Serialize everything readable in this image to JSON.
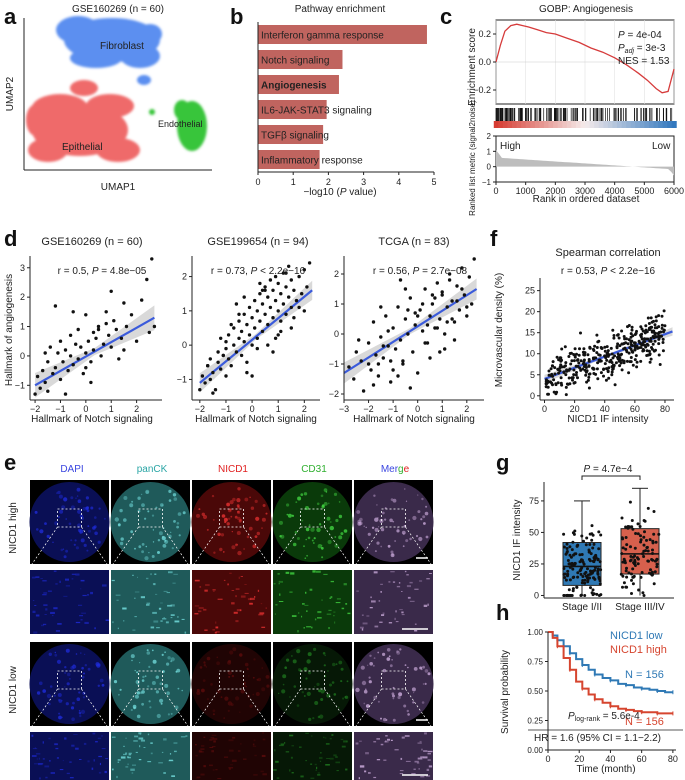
{
  "panel_labels": {
    "a": "a",
    "b": "b",
    "c": "c",
    "d": "d",
    "e": "e",
    "f": "f",
    "g": "g",
    "h": "h"
  },
  "colors": {
    "fibroblast": "#5b8ff0",
    "epithelial": "#ef6b6b",
    "endothelial": "#39c53b",
    "bar": "#c0645f",
    "gsea": "#d63b3b",
    "regline": "#3b5bdb",
    "box1": "#2f79b5",
    "box2": "#d6604d",
    "km_low": "#2f79b5",
    "km_high": "#d6452f"
  },
  "chart_data": [
    {
      "type": "scatter",
      "panel": "a",
      "title": "GSE160269 (n = 60)",
      "xlabel": "UMAP1",
      "ylabel": "UMAP2",
      "clusters": [
        {
          "name": "Fibroblast"
        },
        {
          "name": "Epithelial"
        },
        {
          "name": "Endothelial"
        }
      ]
    },
    {
      "type": "bar",
      "panel": "b",
      "title": "Pathway enrichment",
      "xlabel_pre": "−log10 (",
      "xlabel_it": "P",
      "xlabel_post": " value)",
      "xlim": [
        0,
        5
      ],
      "xticks": [
        "0",
        "1",
        "2",
        "3",
        "4",
        "5"
      ],
      "categories": [
        "Interferon gamma response",
        "Notch signaling",
        "Angiogenesis",
        "IL6-JAK-STAT3 signaling",
        "TGFβ signaling",
        "Inflammatory response"
      ],
      "values": [
        4.8,
        2.4,
        2.3,
        1.95,
        1.85,
        1.75
      ],
      "bold_category": "Angiogenesis"
    },
    {
      "type": "line",
      "panel": "c",
      "title": "GOBP: Angiogenesis",
      "ylabel": "Enrichment score",
      "yticks": [
        "0.2",
        "0.0",
        "−0.2"
      ],
      "ylim": [
        -0.3,
        0.3
      ],
      "stats": {
        "p_label": "P",
        "p_value": " = 4e-04",
        "padj_label": "P",
        "padj_sub": "adj",
        "padj_value": " = 3e-3",
        "nes": "NES = 1.53"
      },
      "x": [
        0,
        150,
        300,
        500,
        700,
        900,
        1100,
        1400,
        1700,
        2000,
        2400,
        2800,
        3200,
        3600,
        4000,
        4400,
        4800,
        5100,
        5400,
        5600,
        5800,
        6000
      ],
      "es": [
        0.0,
        0.12,
        0.22,
        0.26,
        0.27,
        0.26,
        0.25,
        0.23,
        0.21,
        0.2,
        0.17,
        0.14,
        0.1,
        0.07,
        0.03,
        -0.02,
        -0.08,
        -0.13,
        -0.19,
        -0.22,
        -0.21,
        -0.05
      ],
      "metric": {
        "ylabel": "Ranked list metric (signal2noise)",
        "yticks": [
          "2",
          "1",
          "0",
          "−1"
        ],
        "ylim": [
          -1,
          2
        ],
        "high": "High",
        "low": "Low",
        "xlabel": "Rank in ordered dataset",
        "xticks": [
          "0",
          "1000",
          "2000",
          "3000",
          "4000",
          "5000",
          "6000"
        ]
      }
    },
    {
      "type": "scatter",
      "panel": "d1",
      "title": "GSE160269 (n = 60)",
      "stat_pre": "r = 0.5, ",
      "stat_p": "P",
      "stat_post": " = 4.8e−05",
      "xlabel": "Hallmark of Notch signaling",
      "ylabel": "Hallmark of angiogenesis",
      "xlim": [
        -2.2,
        3
      ],
      "ylim": [
        -1.5,
        3.4
      ],
      "xticks": [
        "−2",
        "−1",
        "0",
        "1",
        "2"
      ],
      "yticks": [
        "−1",
        "0",
        "1",
        "2",
        "3"
      ],
      "fit": {
        "x": [
          -2,
          2.7
        ],
        "y": [
          -1.0,
          1.3
        ]
      },
      "points": {
        "x": [
          -2,
          -1.9,
          -1.8,
          -1.7,
          -1.6,
          -1.5,
          -1.5,
          -1.4,
          -1.3,
          -1.2,
          -1.1,
          -1.0,
          -1.0,
          -0.9,
          -0.8,
          -0.7,
          -0.6,
          -0.6,
          -0.5,
          -0.4,
          -0.3,
          -0.3,
          -0.2,
          -0.1,
          0.0,
          0.0,
          0.1,
          0.2,
          0.3,
          0.3,
          0.4,
          0.5,
          0.6,
          0.7,
          0.8,
          0.9,
          1.0,
          1.1,
          1.2,
          1.3,
          1.4,
          1.5,
          1.6,
          1.8,
          2.0,
          2.2,
          2.4,
          2.6,
          2.7,
          -1.2,
          -0.5,
          0.2,
          0.8,
          1.5,
          -0.8,
          0.5,
          1.0,
          -1.6,
          0.0,
          2.5
        ],
        "y": [
          -1.3,
          -0.7,
          -1.1,
          -0.5,
          -0.9,
          -0.2,
          -1.2,
          0.3,
          -0.6,
          -0.4,
          0.1,
          -0.8,
          0.5,
          -0.2,
          0.2,
          -0.5,
          0.0,
          0.7,
          -0.3,
          0.4,
          -0.1,
          0.9,
          0.3,
          -0.6,
          0.1,
          1.4,
          0.5,
          -0.2,
          0.8,
          0.2,
          0.6,
          1.0,
          0.0,
          0.4,
          1.5,
          0.7,
          0.3,
          1.2,
          0.9,
          -0.1,
          0.6,
          1.8,
          1.0,
          1.4,
          0.5,
          1.9,
          2.6,
          3.3,
          1.0,
          1.7,
          1.5,
          -0.9,
          1.1,
          0.2,
          -1.3,
          0.9,
          2.2,
          0.1,
          -0.4,
          0.8
        ]
      }
    },
    {
      "type": "scatter",
      "panel": "d2",
      "title": "GSE199654 (n = 94)",
      "stat_pre": "r = 0.73, ",
      "stat_p": "P",
      "stat_post": " < 2.2e−16",
      "xlabel": "Hallmark of Notch signaling",
      "xlim": [
        -2.3,
        2.6
      ],
      "ylim": [
        -1.6,
        2.6
      ],
      "xticks": [
        "−2",
        "−1",
        "0",
        "1",
        "2"
      ],
      "yticks": [
        "−1",
        "0",
        "1",
        "2"
      ],
      "fit": {
        "x": [
          -2,
          2.3
        ],
        "y": [
          -1.1,
          1.6
        ]
      },
      "points": {
        "x": [
          -2,
          -1.9,
          -1.8,
          -1.7,
          -1.6,
          -1.6,
          -1.5,
          -1.4,
          -1.3,
          -1.3,
          -1.2,
          -1.1,
          -1.0,
          -1.0,
          -0.9,
          -0.9,
          -0.8,
          -0.7,
          -0.7,
          -0.6,
          -0.5,
          -0.5,
          -0.4,
          -0.4,
          -0.3,
          -0.3,
          -0.2,
          -0.2,
          -0.1,
          -0.1,
          0.0,
          0.0,
          0.1,
          0.1,
          0.2,
          0.2,
          0.3,
          0.3,
          0.4,
          0.4,
          0.5,
          0.5,
          0.6,
          0.6,
          0.7,
          0.7,
          0.8,
          0.8,
          0.9,
          0.9,
          1.0,
          1.0,
          1.1,
          1.1,
          1.2,
          1.2,
          1.3,
          1.3,
          1.4,
          1.4,
          1.5,
          1.5,
          1.6,
          1.7,
          1.8,
          1.9,
          2.0,
          2.1,
          2.2,
          -1.5,
          -1.0,
          -0.5,
          0.0,
          0.5,
          1.0,
          1.5,
          -1.2,
          -0.2,
          0.3,
          0.8,
          1.3,
          -0.8,
          0.6,
          1.6,
          -1.7,
          -0.6,
          0.4,
          1.1,
          2.0,
          -0.3,
          0.9,
          1.8,
          -1.1,
          0.2
        ],
        "y": [
          -1.3,
          -0.9,
          -1.1,
          -0.6,
          -1.0,
          -0.4,
          -0.8,
          -1.3,
          -0.5,
          -0.2,
          -0.7,
          -0.3,
          -0.9,
          0.1,
          -0.4,
          0.3,
          -0.6,
          0.0,
          0.5,
          -0.2,
          0.2,
          0.7,
          -0.3,
          0.4,
          0.1,
          0.9,
          -0.5,
          0.6,
          0.3,
          1.1,
          0.0,
          0.8,
          0.5,
          1.3,
          0.2,
          1.0,
          0.7,
          1.5,
          0.4,
          1.2,
          0.9,
          1.7,
          0.6,
          1.4,
          1.1,
          1.9,
          0.8,
          1.6,
          1.3,
          2.0,
          1.0,
          1.8,
          0.7,
          1.5,
          1.2,
          2.1,
          0.9,
          1.7,
          1.4,
          2.3,
          1.1,
          1.9,
          1.6,
          1.3,
          2.0,
          1.5,
          2.2,
          1.7,
          2.4,
          -1.4,
          -0.1,
          0.9,
          -0.9,
          1.6,
          0.3,
          0.5,
          0.2,
          -0.8,
          1.8,
          -0.2,
          2.1,
          0.6,
          0.0,
          0.8,
          -0.6,
          1.2,
          1.6,
          0.4,
          1.0,
          1.4,
          0.2,
          1.1,
          -0.3,
          -0.1
        ]
      }
    },
    {
      "type": "scatter",
      "panel": "d3",
      "title": "TCGA (n = 83)",
      "stat_pre": "r = 0.56, ",
      "stat_p": "P",
      "stat_post": " = 2.7e−08",
      "xlabel": "Hallmark of Notch signaling",
      "xlim": [
        -3,
        2.7
      ],
      "ylim": [
        -2.2,
        2.6
      ],
      "xticks": [
        "−3",
        "−2",
        "−1",
        "0",
        "1",
        "2"
      ],
      "yticks": [
        "−2",
        "−1",
        "0",
        "1",
        "2"
      ],
      "fit": {
        "x": [
          -3,
          2.4
        ],
        "y": [
          -1.3,
          1.5
        ]
      },
      "points": {
        "x": [
          -2.8,
          -2.6,
          -2.5,
          -2.3,
          -2.2,
          -2.0,
          -1.9,
          -1.8,
          -1.7,
          -1.6,
          -1.5,
          -1.4,
          -1.3,
          -1.2,
          -1.1,
          -1.0,
          -0.9,
          -0.8,
          -0.7,
          -0.6,
          -0.5,
          -0.4,
          -0.3,
          -0.2,
          -0.1,
          0.0,
          0.1,
          0.2,
          0.3,
          0.4,
          0.5,
          0.6,
          0.7,
          0.8,
          0.9,
          1.0,
          1.1,
          1.2,
          1.3,
          1.4,
          1.5,
          1.6,
          1.7,
          1.8,
          1.9,
          2.0,
          2.1,
          2.2,
          2.3,
          -2.0,
          -1.5,
          -1.0,
          -0.5,
          0.0,
          0.5,
          1.0,
          1.5,
          -1.8,
          -1.2,
          -0.6,
          0.2,
          0.8,
          1.3,
          -1.4,
          -0.3,
          0.6,
          1.1,
          -0.8,
          0.4,
          1.8,
          -2.4,
          -1.1,
          -0.1,
          0.9,
          1.6,
          -0.7,
          0.3,
          1.2,
          -1.6,
          -0.4,
          0.7,
          2.0,
          1.4
        ],
        "y": [
          -1.1,
          -1.5,
          -0.6,
          -0.9,
          -1.9,
          -0.3,
          -1.2,
          0.4,
          -0.7,
          -1.4,
          -0.1,
          -0.8,
          0.6,
          -0.4,
          -1.6,
          0.2,
          -0.5,
          0.9,
          -0.2,
          -1.0,
          0.5,
          0.0,
          1.2,
          -0.6,
          0.3,
          -1.3,
          0.8,
          0.1,
          1.5,
          -0.3,
          0.6,
          1.0,
          0.2,
          1.7,
          0.5,
          1.3,
          -0.5,
          0.9,
          2.0,
          1.1,
          0.4,
          1.6,
          0.8,
          2.2,
          1.3,
          0.6,
          1.9,
          1.0,
          2.5,
          -1.0,
          0.9,
          -1.2,
          1.5,
          0.6,
          -0.8,
          1.4,
          -0.2,
          -1.7,
          0.1,
          -0.9,
          1.0,
          0.2,
          1.8,
          -0.4,
          -1.8,
          1.3,
          0.0,
          -1.4,
          0.3,
          1.5,
          -0.2,
          -0.9,
          0.7,
          -0.6,
          1.1,
          1.8,
          -0.3,
          0.4,
          -1.0,
          0.8,
          1.2,
          0.9,
          0.5
        ]
      }
    },
    {
      "type": "scatter",
      "panel": "f",
      "title": "Spearman correlation",
      "stat_pre": "r = 0.53, ",
      "stat_p": "P",
      "stat_post": " < 2.2e−16",
      "xlabel": "NICD1 IF intensity",
      "ylabel": "Microvascular density (%)",
      "xlim": [
        -3,
        86
      ],
      "ylim": [
        -1,
        28
      ],
      "xticks": [
        "0",
        "20",
        "40",
        "60",
        "80"
      ],
      "yticks": [
        "0",
        "5",
        "10",
        "15",
        "20",
        "25"
      ],
      "fit": {
        "x": [
          0,
          85
        ],
        "y": [
          4.0,
          15.3
        ]
      },
      "n_points": 380
    },
    {
      "type": "table",
      "panel": "e",
      "columns": [
        "DAPI",
        "panCK",
        "NICD1",
        "CD31",
        "Merge"
      ],
      "merge_parts": {
        "a": "Mer",
        "b": "g",
        "c": "e"
      },
      "rows": [
        "NICD1 high",
        "NICD1 low"
      ]
    },
    {
      "type": "box",
      "panel": "g",
      "ylabel": "NICD1 IF intensity",
      "categories": [
        "Stage I/II",
        "Stage III/IV"
      ],
      "stat_label": "P",
      "stat_value": " = 4.7e−4",
      "ylim": [
        -2,
        90
      ],
      "yticks": [
        "0",
        "25",
        "50",
        "75"
      ],
      "boxes": [
        {
          "q1": 8,
          "median": 23,
          "q3": 42,
          "whislo": 0,
          "whishi": 75
        },
        {
          "q1": 17,
          "median": 33,
          "q3": 53,
          "whislo": 0,
          "whishi": 85
        }
      ],
      "n_points": [
        150,
        105
      ]
    },
    {
      "type": "line",
      "panel": "h",
      "ylabel": "Survival probability",
      "xlabel": "Time (month)",
      "xlim": [
        0,
        82
      ],
      "ylim": [
        0,
        1.0
      ],
      "xticks": [
        "0",
        "20",
        "40",
        "60",
        "80"
      ],
      "yticks": [
        "0.00",
        "0.25",
        "0.50",
        "0.75",
        "1.00"
      ],
      "series": [
        {
          "name": "NICD1 low",
          "n": "N = 156",
          "x": [
            0,
            3,
            6,
            10,
            14,
            18,
            22,
            26,
            30,
            35,
            40,
            45,
            50,
            55,
            60,
            65,
            70,
            75,
            80
          ],
          "y": [
            1.0,
            0.97,
            0.93,
            0.88,
            0.82,
            0.77,
            0.72,
            0.68,
            0.64,
            0.61,
            0.59,
            0.56,
            0.55,
            0.53,
            0.52,
            0.51,
            0.5,
            0.49,
            0.49
          ]
        },
        {
          "name": "NICD1 high",
          "n": "N = 156",
          "x": [
            0,
            3,
            6,
            10,
            14,
            18,
            22,
            26,
            30,
            35,
            40,
            45,
            50,
            55,
            60,
            65,
            70,
            75,
            80
          ],
          "y": [
            1.0,
            0.95,
            0.88,
            0.78,
            0.68,
            0.58,
            0.52,
            0.47,
            0.43,
            0.4,
            0.37,
            0.35,
            0.34,
            0.33,
            0.32,
            0.32,
            0.31,
            0.31,
            0.31
          ]
        }
      ],
      "pval_label": "P",
      "pval_sub": "log-rank",
      "pval_value": " = 5.6e-4",
      "hr": "HR = 1.6 (95% CI = 1.1−2.2)"
    }
  ]
}
